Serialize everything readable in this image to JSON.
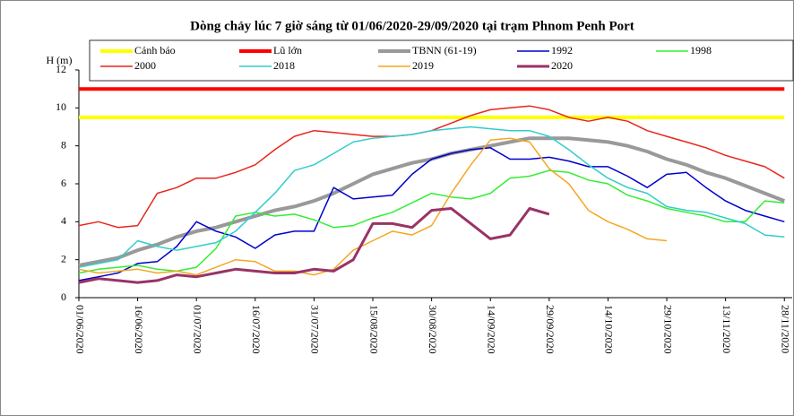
{
  "chart_data": {
    "type": "line",
    "title": "Dòng chảy lúc 7 giờ sáng từ 01/06/2020-29/09/2020 tại trạm Phnom Penh Port",
    "y_label": "H (m)",
    "legend": "top",
    "grid": false,
    "x": [
      0,
      5,
      10,
      15,
      20,
      25,
      30,
      35,
      40,
      45,
      50,
      55,
      60,
      65,
      70,
      75,
      80,
      85,
      90,
      95,
      100,
      105,
      110,
      115,
      120,
      125,
      130,
      135,
      140,
      145,
      150,
      155,
      160,
      165,
      170,
      175,
      180
    ],
    "xlim": [
      0,
      182
    ],
    "xticks": [
      {
        "value": 0,
        "label": "01/06/2020"
      },
      {
        "value": 15,
        "label": "16/06/2020"
      },
      {
        "value": 30,
        "label": "01/07/2020"
      },
      {
        "value": 45,
        "label": "16/07/2020"
      },
      {
        "value": 60,
        "label": "31/07/2020"
      },
      {
        "value": 75,
        "label": "15/08/2020"
      },
      {
        "value": 90,
        "label": "30/08/2020"
      },
      {
        "value": 105,
        "label": "14/09/2020"
      },
      {
        "value": 120,
        "label": "29/09/2020"
      },
      {
        "value": 135,
        "label": "14/10/2020"
      },
      {
        "value": 150,
        "label": "29/10/2020"
      },
      {
        "value": 165,
        "label": "13/11/2020"
      },
      {
        "value": 180,
        "label": "28/11/2020"
      }
    ],
    "ylim": [
      0,
      12
    ],
    "yticks": [
      0,
      2,
      4,
      6,
      8,
      10,
      12
    ],
    "series": [
      {
        "name": "Cảnh báo",
        "color": "#ffff00",
        "width": 4,
        "values": [
          9.5,
          9.5,
          9.5,
          9.5,
          9.5,
          9.5,
          9.5,
          9.5,
          9.5,
          9.5,
          9.5,
          9.5,
          9.5,
          9.5,
          9.5,
          9.5,
          9.5,
          9.5,
          9.5,
          9.5,
          9.5,
          9.5,
          9.5,
          9.5,
          9.5,
          9.5,
          9.5,
          9.5,
          9.5,
          9.5,
          9.5,
          9.5,
          9.5,
          9.5,
          9.5,
          9.5,
          9.5
        ]
      },
      {
        "name": "Lũ lớn",
        "color": "#ff0000",
        "width": 4,
        "values": [
          11,
          11,
          11,
          11,
          11,
          11,
          11,
          11,
          11,
          11,
          11,
          11,
          11,
          11,
          11,
          11,
          11,
          11,
          11,
          11,
          11,
          11,
          11,
          11,
          11,
          11,
          11,
          11,
          11,
          11,
          11,
          11,
          11,
          11,
          11,
          11,
          11
        ]
      },
      {
        "name": "TBNN (61-19)",
        "color": "#999999",
        "width": 4,
        "values": [
          1.7,
          1.9,
          2.1,
          2.5,
          2.8,
          3.2,
          3.5,
          3.7,
          4.0,
          4.3,
          4.6,
          4.8,
          5.1,
          5.5,
          6.0,
          6.5,
          6.8,
          7.1,
          7.3,
          7.6,
          7.8,
          8.0,
          8.2,
          8.4,
          8.4,
          8.4,
          8.3,
          8.2,
          8.0,
          7.7,
          7.3,
          7.0,
          6.6,
          6.3,
          5.9,
          5.5,
          5.1
        ]
      },
      {
        "name": "1992",
        "color": "#0000cc",
        "width": 1.5,
        "values": [
          0.9,
          1.1,
          1.3,
          1.8,
          1.9,
          2.7,
          4.0,
          3.5,
          3.2,
          2.6,
          3.3,
          3.5,
          3.5,
          5.8,
          5.2,
          5.3,
          5.4,
          6.5,
          7.3,
          7.6,
          7.8,
          7.9,
          7.3,
          7.3,
          7.4,
          7.2,
          6.9,
          6.9,
          6.4,
          5.8,
          6.5,
          6.6,
          5.8,
          5.1,
          4.6,
          4.3,
          4.0
        ]
      },
      {
        "name": "1998",
        "color": "#33ee33",
        "width": 1.5,
        "values": [
          1.3,
          1.5,
          1.6,
          1.7,
          1.5,
          1.4,
          1.6,
          2.6,
          4.3,
          4.5,
          4.3,
          4.4,
          4.1,
          3.7,
          3.8,
          4.2,
          4.5,
          5.0,
          5.5,
          5.3,
          5.2,
          5.5,
          6.3,
          6.4,
          6.7,
          6.6,
          6.2,
          6.0,
          5.4,
          5.1,
          4.7,
          4.5,
          4.3,
          4.0,
          4.0,
          5.1,
          5.0
        ]
      },
      {
        "name": "2000",
        "color": "#e8261c",
        "width": 1.5,
        "values": [
          3.8,
          4.0,
          3.7,
          3.8,
          5.5,
          5.8,
          6.3,
          6.3,
          6.6,
          7.0,
          7.8,
          8.5,
          8.8,
          8.7,
          8.6,
          8.5,
          8.5,
          8.6,
          8.8,
          9.2,
          9.6,
          9.9,
          10.0,
          10.1,
          9.9,
          9.5,
          9.3,
          9.5,
          9.3,
          8.8,
          8.5,
          8.2,
          7.9,
          7.5,
          7.2,
          6.9,
          6.3
        ]
      },
      {
        "name": "2018",
        "color": "#33cccc",
        "width": 1.5,
        "values": [
          1.6,
          1.8,
          2.0,
          3.0,
          2.7,
          2.5,
          2.7,
          2.9,
          3.5,
          4.5,
          5.5,
          6.7,
          7.0,
          7.6,
          8.2,
          8.4,
          8.5,
          8.6,
          8.8,
          8.9,
          9.0,
          8.9,
          8.8,
          8.8,
          8.5,
          7.8,
          7.0,
          6.3,
          5.8,
          5.5,
          4.8,
          4.6,
          4.5,
          4.2,
          3.9,
          3.3,
          3.2
        ]
      },
      {
        "name": "2019",
        "color": "#f5a623",
        "width": 1.5,
        "values": [
          1.5,
          1.3,
          1.4,
          1.5,
          1.3,
          1.4,
          1.2,
          1.6,
          2.0,
          1.9,
          1.4,
          1.4,
          1.2,
          1.5,
          2.5,
          3.0,
          3.5,
          3.3,
          3.8,
          5.5,
          7.0,
          8.3,
          8.4,
          8.2,
          6.8,
          6.0,
          4.6,
          4.0,
          3.6,
          3.1,
          3.0,
          null,
          null,
          null,
          null,
          null,
          null
        ]
      },
      {
        "name": "2020",
        "color": "#993366",
        "width": 3,
        "values": [
          0.8,
          1.0,
          0.9,
          0.8,
          0.9,
          1.2,
          1.1,
          1.3,
          1.5,
          1.4,
          1.3,
          1.3,
          1.5,
          1.4,
          2.0,
          3.9,
          3.9,
          3.7,
          4.6,
          4.7,
          3.9,
          3.1,
          3.3,
          4.7,
          4.4,
          null,
          null,
          null,
          null,
          null,
          null,
          null,
          null,
          null,
          null,
          null,
          null
        ]
      }
    ]
  }
}
